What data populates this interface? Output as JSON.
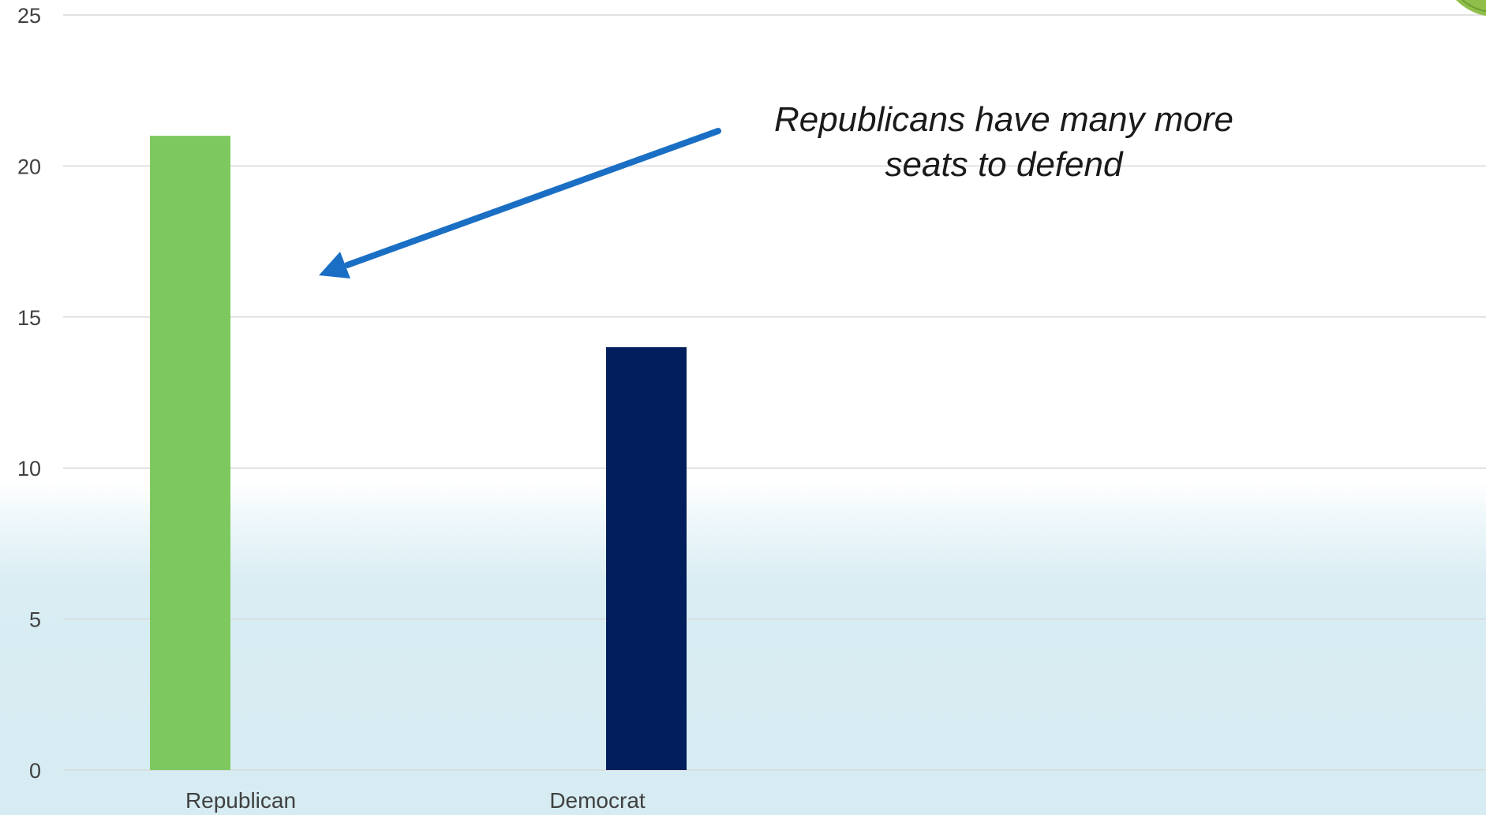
{
  "chart_data": {
    "type": "bar",
    "categories": [
      "Republican",
      "Democrat"
    ],
    "values": [
      21,
      14
    ],
    "colors": [
      "#7ec95f",
      "#021e5c"
    ],
    "ylim": [
      0,
      25
    ],
    "yticks": [
      0,
      5,
      10,
      15,
      20,
      25
    ],
    "title": "",
    "xlabel": "",
    "ylabel": "",
    "grid": true,
    "annotation": {
      "line1": "Republicans have many more",
      "line2": "seats to defend",
      "arrow_color": "#1a6fc4",
      "points_to": "Republican"
    }
  }
}
